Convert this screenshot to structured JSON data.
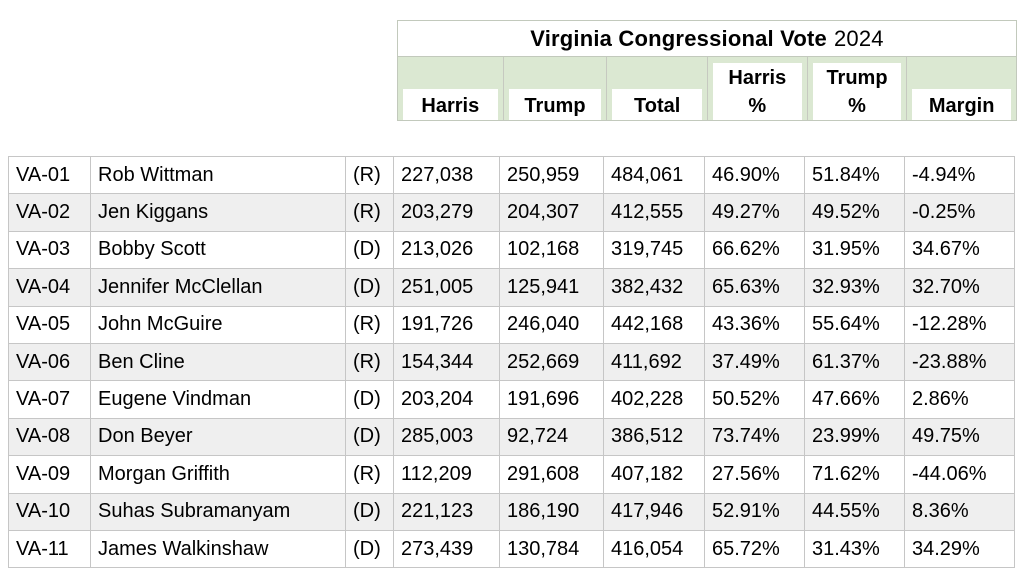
{
  "header": {
    "title_main": "Virginia Congressional Vote",
    "title_year": "2024",
    "columns": {
      "harris": {
        "label": "Harris"
      },
      "trump": {
        "label": "Trump"
      },
      "total": {
        "label": "Total"
      },
      "harris_pct": {
        "label": "Harris\n%"
      },
      "trump_pct": {
        "label": "Trump\n%"
      },
      "margin": {
        "label": "Margin"
      }
    }
  },
  "colors": {
    "header_green": "#dbe8d2",
    "row_alt_gray": "#efefef",
    "grid_border": "#c6c6c6"
  },
  "table": {
    "rows": [
      {
        "district": "VA-01",
        "name": "Rob Wittman",
        "party": "(R)",
        "harris": "227,038",
        "trump": "250,959",
        "total": "484,061",
        "harris_pct": "46.90%",
        "trump_pct": "51.84%",
        "margin": "-4.94%"
      },
      {
        "district": "VA-02",
        "name": "Jen Kiggans",
        "party": "(R)",
        "harris": "203,279",
        "trump": "204,307",
        "total": "412,555",
        "harris_pct": "49.27%",
        "trump_pct": "49.52%",
        "margin": "-0.25%"
      },
      {
        "district": "VA-03",
        "name": "Bobby Scott",
        "party": "(D)",
        "harris": "213,026",
        "trump": "102,168",
        "total": "319,745",
        "harris_pct": "66.62%",
        "trump_pct": "31.95%",
        "margin": "34.67%"
      },
      {
        "district": "VA-04",
        "name": "Jennifer McClellan",
        "party": "(D)",
        "harris": "251,005",
        "trump": "125,941",
        "total": "382,432",
        "harris_pct": "65.63%",
        "trump_pct": "32.93%",
        "margin": "32.70%"
      },
      {
        "district": "VA-05",
        "name": "John McGuire",
        "party": "(R)",
        "harris": "191,726",
        "trump": "246,040",
        "total": "442,168",
        "harris_pct": "43.36%",
        "trump_pct": "55.64%",
        "margin": "-12.28%"
      },
      {
        "district": "VA-06",
        "name": "Ben Cline",
        "party": "(R)",
        "harris": "154,344",
        "trump": "252,669",
        "total": "411,692",
        "harris_pct": "37.49%",
        "trump_pct": "61.37%",
        "margin": "-23.88%"
      },
      {
        "district": "VA-07",
        "name": "Eugene Vindman",
        "party": "(D)",
        "harris": "203,204",
        "trump": "191,696",
        "total": "402,228",
        "harris_pct": "50.52%",
        "trump_pct": "47.66%",
        "margin": "2.86%"
      },
      {
        "district": "VA-08",
        "name": "Don Beyer",
        "party": "(D)",
        "harris": "285,003",
        "trump": "92,724",
        "total": "386,512",
        "harris_pct": "73.74%",
        "trump_pct": "23.99%",
        "margin": "49.75%"
      },
      {
        "district": "VA-09",
        "name": "Morgan Griffith",
        "party": "(R)",
        "harris": "112,209",
        "trump": "291,608",
        "total": "407,182",
        "harris_pct": "27.56%",
        "trump_pct": "71.62%",
        "margin": "-44.06%"
      },
      {
        "district": "VA-10",
        "name": "Suhas Subramanyam",
        "party": "(D)",
        "harris": "221,123",
        "trump": "186,190",
        "total": "417,946",
        "harris_pct": "52.91%",
        "trump_pct": "44.55%",
        "margin": "8.36%"
      },
      {
        "district": "VA-11",
        "name": "James Walkinshaw",
        "party": "(D)",
        "harris": "273,439",
        "trump": "130,784",
        "total": "416,054",
        "harris_pct": "65.72%",
        "trump_pct": "31.43%",
        "margin": "34.29%"
      }
    ]
  }
}
